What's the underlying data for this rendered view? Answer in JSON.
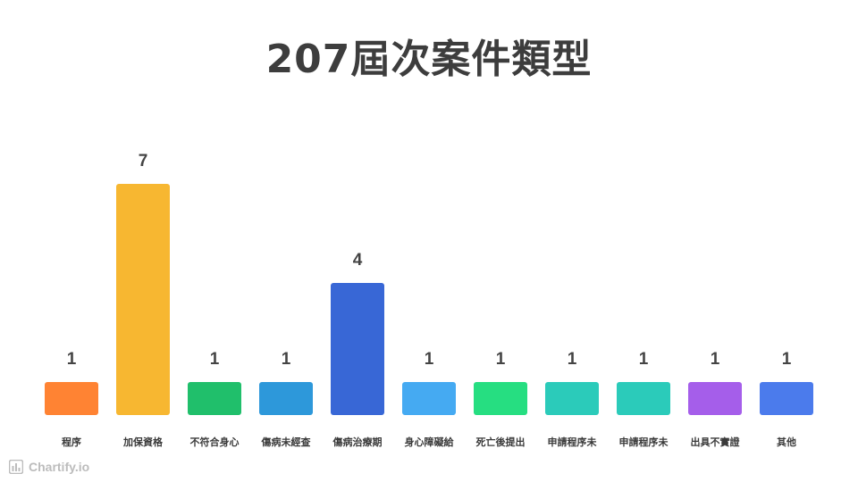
{
  "chart_data": {
    "type": "bar",
    "title": "207屆次案件類型",
    "categories": [
      "程序",
      "加保資格",
      "不符合身心",
      "傷病未經查",
      "傷病治療期",
      "身心障礙給",
      "死亡後提出",
      "申請程序未",
      "申請程序未",
      "出具不實證",
      "其他"
    ],
    "values": [
      1,
      7,
      1,
      1,
      4,
      1,
      1,
      1,
      1,
      1,
      1
    ],
    "colors": [
      "#ff8333",
      "#f7b731",
      "#20bf6b",
      "#2d98da",
      "#3867d6",
      "#45aaf2",
      "#26de81",
      "#2bcbba",
      "#2bcbba",
      "#a55eea",
      "#4b7bec"
    ],
    "ylim": [
      0,
      7
    ],
    "grid": false,
    "legend": "none",
    "data_labels": true
  },
  "watermark": {
    "text": "Chartify.io",
    "icon": "bar-chart-icon"
  }
}
